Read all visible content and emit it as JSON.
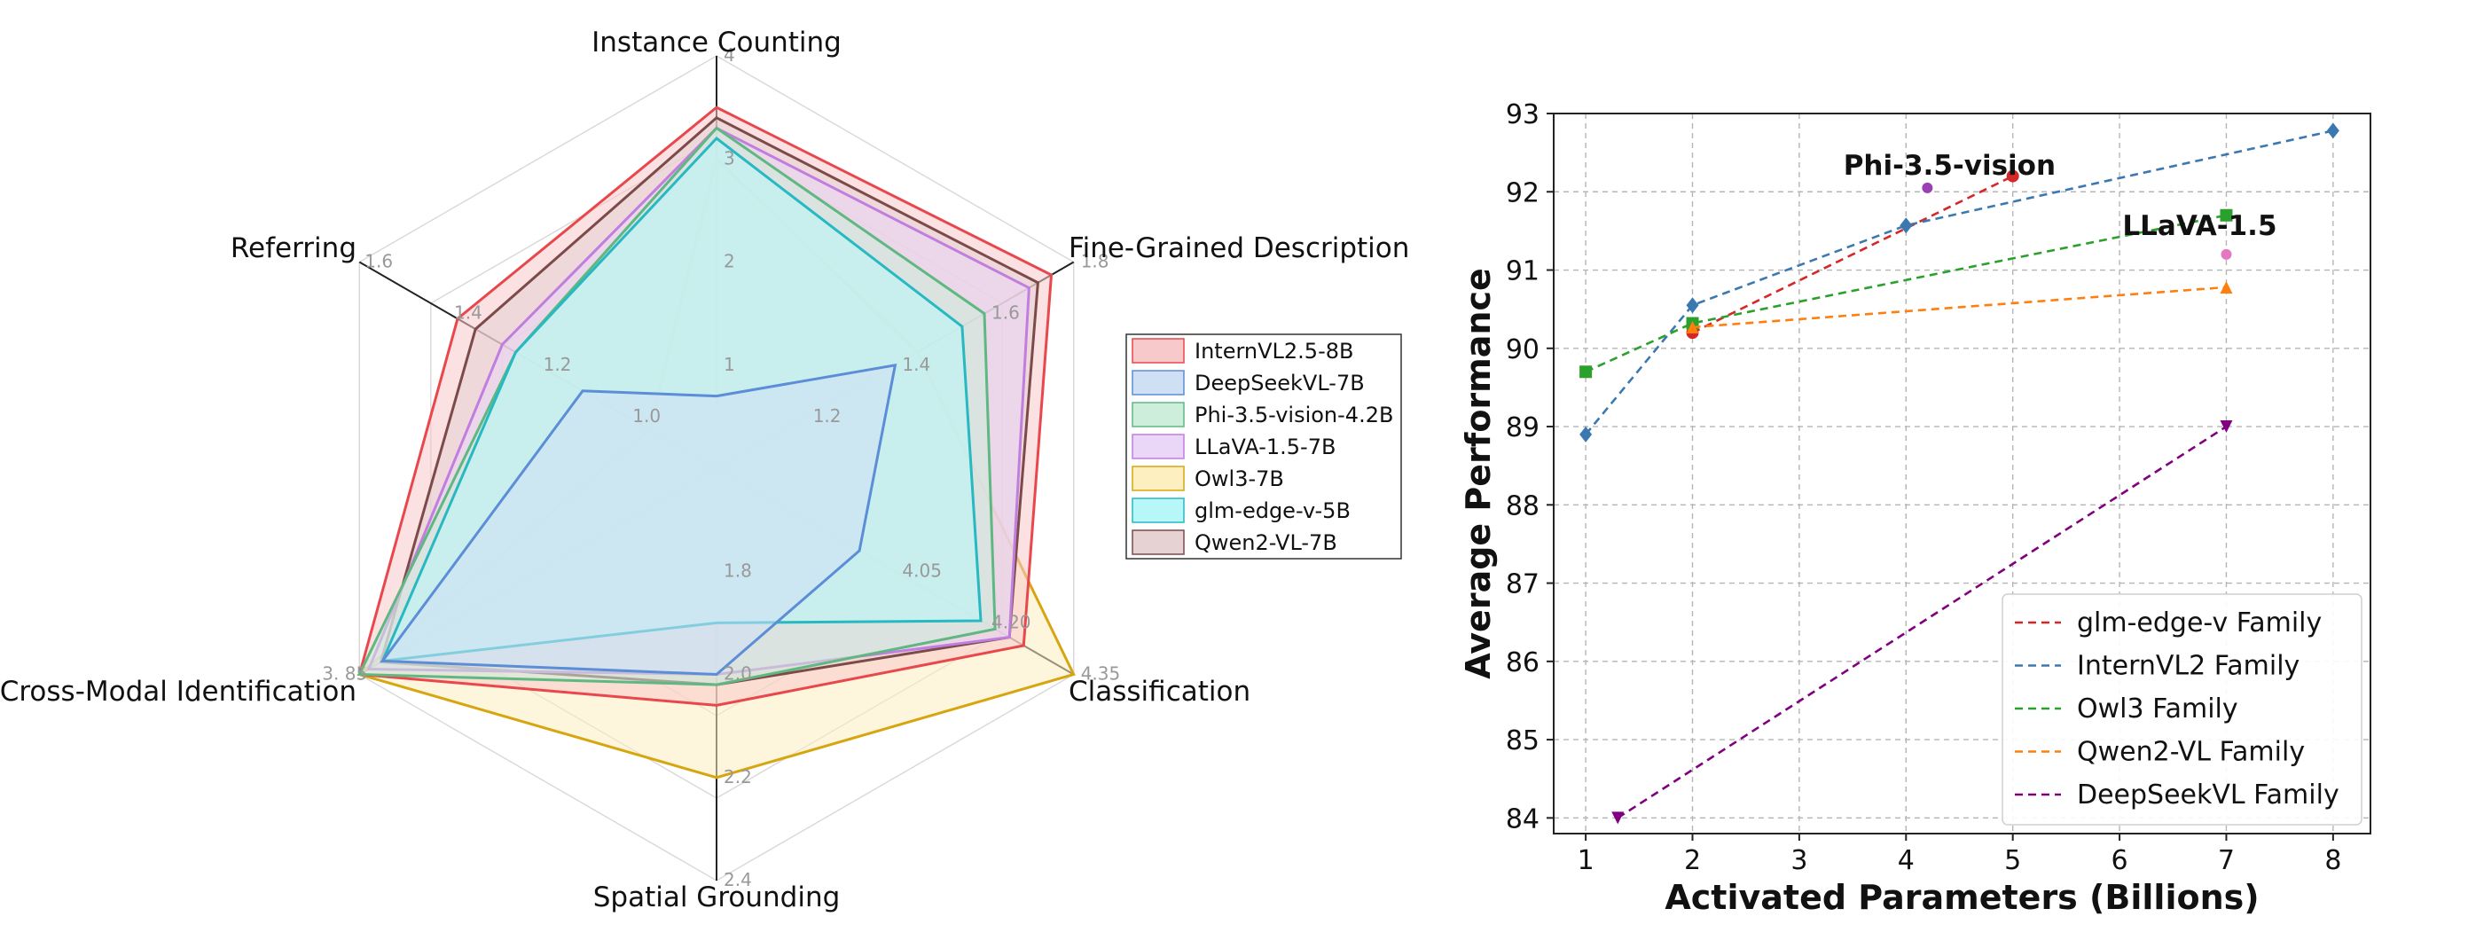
{
  "chart_data": [
    {
      "type": "radar",
      "axes": [
        {
          "label": "Instance Counting",
          "range": [
            0,
            4
          ],
          "ticks": [
            "1",
            "2",
            "3",
            "4"
          ]
        },
        {
          "label": "Fine-Grained Description",
          "range": [
            1.0,
            1.8
          ],
          "ticks": [
            "1.2",
            "1.4",
            "1.6",
            "1.8"
          ]
        },
        {
          "label": "Classification",
          "range": [
            3.85,
            4.35
          ],
          "ticks": [
            "4.05",
            "4.20",
            "4.35"
          ]
        },
        {
          "label": "Spatial Grounding",
          "range": [
            1.6,
            2.4
          ],
          "ticks": [
            "1.8",
            "2.0",
            "2.2",
            "2.4"
          ]
        },
        {
          "label": "Cross-Modal Identification",
          "range": [
            0,
            3.85
          ],
          "ticks": [
            "3. 85"
          ]
        },
        {
          "label": "Referring",
          "range": [
            0.8,
            1.6
          ],
          "ticks": [
            "1.0",
            "1.2",
            "1.4",
            "1.6"
          ]
        }
      ],
      "series": [
        {
          "name": "InternVL2.5-8B",
          "color": "#e8474c",
          "fill": "#f8c9cb",
          "values": [
            3.5,
            1.75,
            4.28,
            2.06,
            3.85,
            1.38
          ]
        },
        {
          "name": "DeepSeekVL-7B",
          "color": "#5b8ed6",
          "fill": "#cfe0f5",
          "values": [
            0.7,
            1.4,
            4.05,
            2.0,
            3.6,
            1.1
          ]
        },
        {
          "name": "Phi-3.5-vision-4.2B",
          "color": "#5fb882",
          "fill": "#cdeeda",
          "values": [
            3.3,
            1.6,
            4.24,
            2.02,
            3.85,
            1.25
          ]
        },
        {
          "name": "LLaVA-1.5-7B",
          "color": "#c07ee0",
          "fill": "#ead6f6",
          "values": [
            3.3,
            1.7,
            4.26,
            2.0,
            3.75,
            1.28
          ]
        },
        {
          "name": "Owl3-7B",
          "color": "#d6a510",
          "fill": "#fdefbf",
          "values": [
            3.0,
            1.45,
            4.35,
            2.2,
            3.85,
            0.95
          ]
        },
        {
          "name": "glm-edge-v-5B",
          "color": "#27b9c2",
          "fill": "#b8f7f7",
          "values": [
            3.2,
            1.55,
            4.22,
            1.9,
            3.6,
            1.25
          ]
        },
        {
          "name": "Qwen2-VL-7B",
          "color": "#7d4a4a",
          "fill": "#e6d2d2",
          "values": [
            3.4,
            1.72,
            4.26,
            2.02,
            3.62,
            1.34
          ]
        }
      ]
    },
    {
      "type": "line",
      "xlabel": "Activated Parameters (Billions)",
      "ylabel": "Average Performance",
      "xlim": [
        0.7,
        8.35
      ],
      "ylim": [
        83.8,
        93.0
      ],
      "xticks": [
        1,
        2,
        3,
        4,
        5,
        6,
        7,
        8
      ],
      "yticks": [
        84,
        85,
        86,
        87,
        88,
        89,
        90,
        91,
        92,
        93
      ],
      "grid": true,
      "legend_position": "bottom-right",
      "series": [
        {
          "name": "glm-edge-v Family",
          "color": "#d62728",
          "marker": "circle",
          "x": [
            2,
            5
          ],
          "y": [
            90.2,
            92.2
          ]
        },
        {
          "name": "InternVL2 Family",
          "color": "#3b78b0",
          "marker": "diamond",
          "x": [
            1,
            2,
            4,
            8
          ],
          "y": [
            88.9,
            90.55,
            91.57,
            92.78
          ]
        },
        {
          "name": "Owl3 Family",
          "color": "#2ca02c",
          "marker": "square",
          "x": [
            1,
            2,
            7
          ],
          "y": [
            89.7,
            90.32,
            91.7
          ]
        },
        {
          "name": "Qwen2-VL Family",
          "color": "#ff7f0e",
          "marker": "triangle-up",
          "x": [
            2,
            7
          ],
          "y": [
            90.27,
            90.78
          ]
        },
        {
          "name": "DeepSeekVL Family",
          "color": "#800080",
          "marker": "triangle-down",
          "x": [
            1.3,
            7
          ],
          "y": [
            84.0,
            89.0
          ]
        }
      ],
      "points": [
        {
          "label": "Phi-3.5-vision",
          "x": 4.2,
          "y": 92.05,
          "color": "#9b3fb5"
        },
        {
          "label": "LLaVA-1.5",
          "x": 7,
          "y": 91.2,
          "color": "#e377c2"
        }
      ]
    }
  ]
}
